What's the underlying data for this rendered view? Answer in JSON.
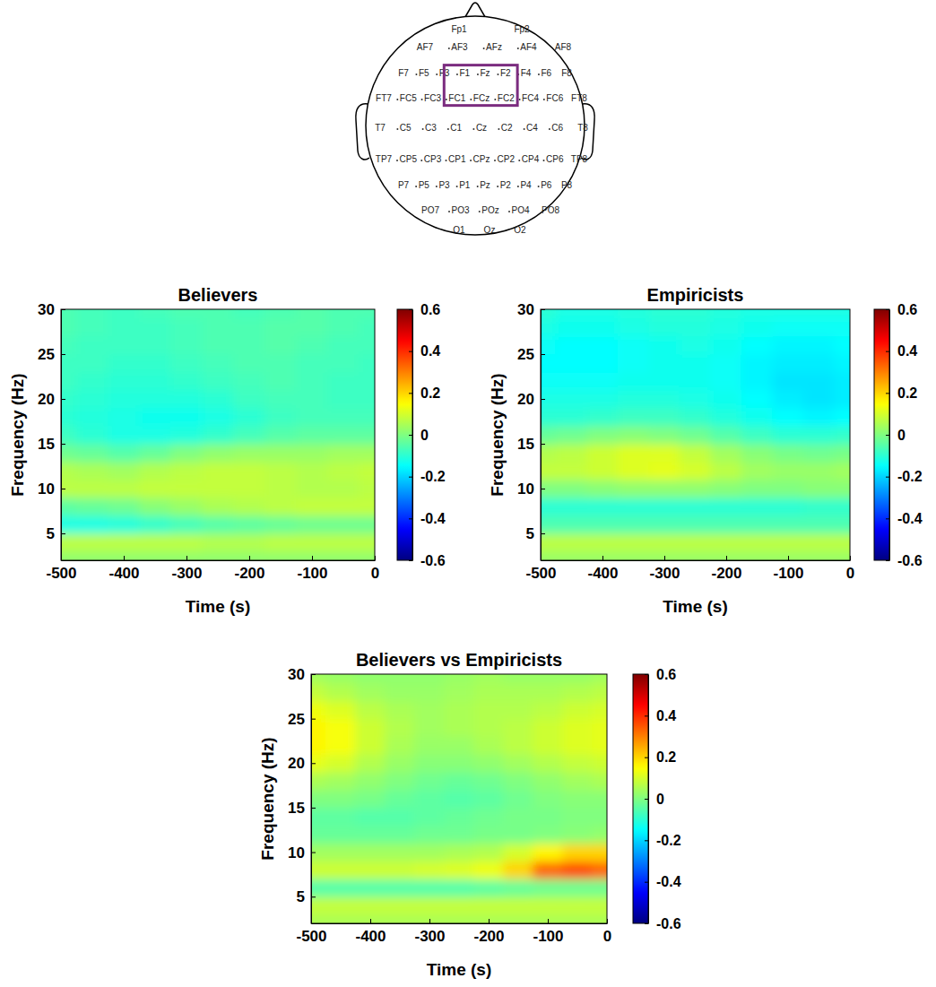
{
  "scalp_map": {
    "electrode_rows": [
      [
        "Fp1",
        "Fp2"
      ],
      [
        "AF7",
        "AF3",
        "AFz",
        "AF4",
        "AF8"
      ],
      [
        "F7",
        "F5",
        "F3",
        "F1",
        "Fz",
        "F2",
        "F4",
        "F6",
        "F8"
      ],
      [
        "FT7",
        "FC5",
        "FC3",
        "FC1",
        "FCz",
        "FC2",
        "FC4",
        "FC6",
        "FT8"
      ],
      [
        "T7",
        "C5",
        "C3",
        "C1",
        "Cz",
        "C2",
        "C4",
        "C6",
        "T8"
      ],
      [
        "TP7",
        "CP5",
        "CP3",
        "CP1",
        "CPz",
        "CP2",
        "CP4",
        "CP6",
        "TP8"
      ],
      [
        "P7",
        "P5",
        "P3",
        "P1",
        "Pz",
        "P2",
        "P4",
        "P6",
        "P8"
      ],
      [
        "PO7",
        "PO3",
        "POz",
        "PO4",
        "PO8"
      ],
      [
        "O1",
        "Oz",
        "O2"
      ]
    ],
    "highlighted": [
      "F1",
      "Fz",
      "F2",
      "FC1",
      "FCz",
      "FC2"
    ]
  },
  "chart_data": [
    {
      "type": "heatmap",
      "title": "Believers",
      "x_label": "Time (s)",
      "y_label": "Frequency (Hz)",
      "xlim": [
        -500,
        0
      ],
      "ylim": [
        2,
        30
      ],
      "xticks": [
        -500,
        -400,
        -300,
        -200,
        -100,
        0
      ],
      "yticks": [
        5,
        10,
        15,
        20,
        25,
        30
      ],
      "x": [
        -500,
        -450,
        -400,
        -350,
        -300,
        -250,
        -200,
        -150,
        -100,
        -50,
        0
      ],
      "y": [
        2,
        4,
        6,
        8,
        10,
        12,
        14,
        16,
        18,
        20,
        22,
        24,
        26,
        28,
        30
      ],
      "z": [
        [
          0.02,
          0.02,
          0.02,
          0.02,
          0.02,
          0.02,
          0.02,
          0.02,
          0.02,
          0.02,
          0.02
        ],
        [
          0.07,
          0.07,
          0.07,
          0.07,
          0.07,
          0.06,
          0.06,
          0.07,
          0.07,
          0.07,
          0.07
        ],
        [
          -0.12,
          -0.12,
          -0.11,
          -0.09,
          -0.07,
          -0.05,
          -0.04,
          -0.03,
          -0.02,
          -0.02,
          -0.02
        ],
        [
          -0.04,
          -0.03,
          -0.02,
          0.01,
          0.03,
          0.05,
          0.06,
          0.07,
          0.08,
          0.08,
          0.08
        ],
        [
          0.07,
          0.07,
          0.07,
          0.08,
          0.08,
          0.08,
          0.08,
          0.07,
          0.06,
          0.06,
          0.07
        ],
        [
          0.06,
          0.05,
          0.04,
          0.06,
          0.07,
          0.08,
          0.08,
          0.07,
          0.06,
          0.07,
          0.08
        ],
        [
          -0.02,
          -0.03,
          -0.05,
          -0.03,
          0,
          0.02,
          0.03,
          0.03,
          0.03,
          0.04,
          0.04
        ],
        [
          -0.08,
          -0.1,
          -0.12,
          -0.12,
          -0.11,
          -0.09,
          -0.07,
          -0.05,
          -0.04,
          -0.04,
          -0.04
        ],
        [
          -0.1,
          -0.11,
          -0.12,
          -0.13,
          -0.13,
          -0.12,
          -0.1,
          -0.08,
          -0.07,
          -0.07,
          -0.07
        ],
        [
          -0.09,
          -0.1,
          -0.11,
          -0.11,
          -0.11,
          -0.1,
          -0.08,
          -0.07,
          -0.07,
          -0.08,
          -0.08
        ],
        [
          -0.08,
          -0.09,
          -0.1,
          -0.1,
          -0.09,
          -0.08,
          -0.07,
          -0.06,
          -0.07,
          -0.08,
          -0.08
        ],
        [
          -0.08,
          -0.08,
          -0.09,
          -0.09,
          -0.08,
          -0.07,
          -0.06,
          -0.06,
          -0.07,
          -0.07,
          -0.08
        ],
        [
          -0.07,
          -0.08,
          -0.08,
          -0.08,
          -0.07,
          -0.06,
          -0.06,
          -0.05,
          -0.06,
          -0.07,
          -0.07
        ],
        [
          -0.06,
          -0.07,
          -0.08,
          -0.08,
          -0.07,
          -0.06,
          -0.06,
          -0.05,
          -0.05,
          -0.06,
          -0.07
        ],
        [
          -0.06,
          -0.07,
          -0.08,
          -0.07,
          -0.06,
          -0.06,
          -0.07,
          -0.06,
          -0.05,
          -0.06,
          -0.06
        ]
      ],
      "colorbar": {
        "range": [
          -0.6,
          0.6
        ],
        "ticks": [
          -0.6,
          -0.4,
          -0.2,
          0,
          0.2,
          0.4,
          0.6
        ]
      }
    },
    {
      "type": "heatmap",
      "title": "Empiricists",
      "x_label": "Time (s)",
      "y_label": "Frequency (Hz)",
      "xlim": [
        -500,
        0
      ],
      "ylim": [
        2,
        30
      ],
      "xticks": [
        -500,
        -400,
        -300,
        -200,
        -100,
        0
      ],
      "yticks": [
        5,
        10,
        15,
        20,
        25,
        30
      ],
      "x": [
        -500,
        -450,
        -400,
        -350,
        -300,
        -250,
        -200,
        -150,
        -100,
        -50,
        0
      ],
      "y": [
        2,
        4,
        6,
        8,
        10,
        12,
        14,
        16,
        18,
        20,
        22,
        24,
        26,
        28,
        30
      ],
      "z": [
        [
          0.03,
          0.03,
          0.03,
          0.03,
          0.03,
          0.03,
          0.03,
          0.03,
          0.03,
          0.03,
          0.03
        ],
        [
          0.07,
          0.07,
          0.07,
          0.07,
          0.07,
          0.07,
          0.07,
          0.07,
          0.07,
          0.07,
          0.07
        ],
        [
          -0.06,
          -0.06,
          -0.06,
          -0.06,
          -0.06,
          -0.06,
          -0.06,
          -0.06,
          -0.06,
          -0.06,
          -0.06
        ],
        [
          -0.1,
          -0.1,
          -0.1,
          -0.1,
          -0.1,
          -0.1,
          -0.1,
          -0.1,
          -0.1,
          -0.09,
          -0.09
        ],
        [
          0,
          0,
          0.01,
          0.02,
          0.02,
          0.02,
          0.01,
          0,
          0,
          0.01,
          0.01
        ],
        [
          0.08,
          0.08,
          0.09,
          0.11,
          0.12,
          0.1,
          0.07,
          0.04,
          0.03,
          0.03,
          0.04
        ],
        [
          0.06,
          0.07,
          0.09,
          0.11,
          0.11,
          0.08,
          0.04,
          0.01,
          -0.01,
          -0.02,
          -0.01
        ],
        [
          -0.03,
          -0.02,
          0,
          0.01,
          0,
          -0.02,
          -0.05,
          -0.08,
          -0.1,
          -0.1,
          -0.09
        ],
        [
          -0.1,
          -0.1,
          -0.09,
          -0.08,
          -0.08,
          -0.09,
          -0.11,
          -0.13,
          -0.15,
          -0.16,
          -0.15
        ],
        [
          -0.12,
          -0.12,
          -0.12,
          -0.11,
          -0.11,
          -0.12,
          -0.13,
          -0.15,
          -0.17,
          -0.18,
          -0.17
        ],
        [
          -0.14,
          -0.14,
          -0.14,
          -0.13,
          -0.13,
          -0.13,
          -0.14,
          -0.16,
          -0.18,
          -0.18,
          -0.17
        ],
        [
          -0.15,
          -0.15,
          -0.15,
          -0.14,
          -0.13,
          -0.13,
          -0.14,
          -0.16,
          -0.17,
          -0.17,
          -0.16
        ],
        [
          -0.14,
          -0.15,
          -0.15,
          -0.14,
          -0.13,
          -0.12,
          -0.13,
          -0.15,
          -0.16,
          -0.16,
          -0.15
        ],
        [
          -0.12,
          -0.13,
          -0.13,
          -0.12,
          -0.11,
          -0.11,
          -0.12,
          -0.13,
          -0.14,
          -0.14,
          -0.14
        ],
        [
          -0.1,
          -0.12,
          -0.12,
          -0.11,
          -0.1,
          -0.1,
          -0.11,
          -0.12,
          -0.12,
          -0.12,
          -0.12
        ]
      ],
      "colorbar": {
        "range": [
          -0.6,
          0.6
        ],
        "ticks": [
          -0.6,
          -0.4,
          -0.2,
          0,
          0.2,
          0.4,
          0.6
        ]
      }
    },
    {
      "type": "heatmap",
      "title": "Believers vs Empiricists",
      "x_label": "Time (s)",
      "y_label": "Frequency (Hz)",
      "xlim": [
        -500,
        0
      ],
      "ylim": [
        2,
        30
      ],
      "xticks": [
        -500,
        -400,
        -300,
        -200,
        -100,
        0
      ],
      "yticks": [
        5,
        10,
        15,
        20,
        25,
        30
      ],
      "x": [
        -500,
        -450,
        -400,
        -350,
        -300,
        -250,
        -200,
        -150,
        -100,
        -50,
        0
      ],
      "y": [
        2,
        4,
        6,
        8,
        10,
        12,
        14,
        16,
        18,
        20,
        22,
        24,
        26,
        28,
        30
      ],
      "z": [
        [
          0.05,
          0.05,
          0.05,
          0.05,
          0.05,
          0.05,
          0.05,
          0.05,
          0.05,
          0.05,
          0.05
        ],
        [
          0.08,
          0.08,
          0.08,
          0.08,
          0.08,
          0.08,
          0.08,
          0.08,
          0.08,
          0.08,
          0.08
        ],
        [
          -0.05,
          -0.05,
          -0.05,
          -0.05,
          -0.05,
          -0.05,
          -0.04,
          -0.03,
          -0.02,
          -0.02,
          -0.02
        ],
        [
          0.09,
          0.09,
          0.09,
          0.09,
          0.1,
          0.11,
          0.13,
          0.2,
          0.33,
          0.36,
          0.33
        ],
        [
          0.04,
          0.04,
          0.04,
          0.04,
          0.04,
          0.05,
          0.06,
          0.1,
          0.16,
          0.2,
          0.2
        ],
        [
          -0.03,
          -0.03,
          -0.03,
          -0.03,
          -0.02,
          -0.02,
          -0.01,
          -0.01,
          0,
          0.01,
          0.02
        ],
        [
          -0.04,
          -0.04,
          -0.05,
          -0.05,
          -0.04,
          -0.03,
          -0.02,
          -0.01,
          -0.01,
          0,
          0
        ],
        [
          0,
          0,
          -0.01,
          -0.03,
          -0.04,
          -0.05,
          -0.04,
          -0.02,
          0,
          0.01,
          0.01
        ],
        [
          0.05,
          0.04,
          0.02,
          0,
          -0.02,
          -0.03,
          -0.02,
          0,
          0.02,
          0.04,
          0.05
        ],
        [
          0.12,
          0.1,
          0.06,
          0.03,
          0.01,
          0.01,
          0.02,
          0.04,
          0.06,
          0.08,
          0.09
        ],
        [
          0.16,
          0.14,
          0.09,
          0.05,
          0.03,
          0.03,
          0.05,
          0.07,
          0.09,
          0.11,
          0.12
        ],
        [
          0.16,
          0.14,
          0.09,
          0.06,
          0.04,
          0.05,
          0.06,
          0.07,
          0.09,
          0.11,
          0.12
        ],
        [
          0.13,
          0.11,
          0.07,
          0.05,
          0.04,
          0.05,
          0.06,
          0.06,
          0.07,
          0.09,
          0.1
        ],
        [
          0.08,
          0.06,
          0.04,
          0.03,
          0.03,
          0.04,
          0.05,
          0.05,
          0.05,
          0.06,
          0.07
        ],
        [
          0.04,
          0.03,
          0.02,
          0.02,
          0.02,
          0.03,
          0.04,
          0.03,
          0.03,
          0.03,
          0.04
        ]
      ],
      "colorbar": {
        "range": [
          -0.6,
          0.6
        ],
        "ticks": [
          -0.6,
          -0.4,
          -0.2,
          0,
          0.2,
          0.4,
          0.6
        ]
      }
    }
  ]
}
